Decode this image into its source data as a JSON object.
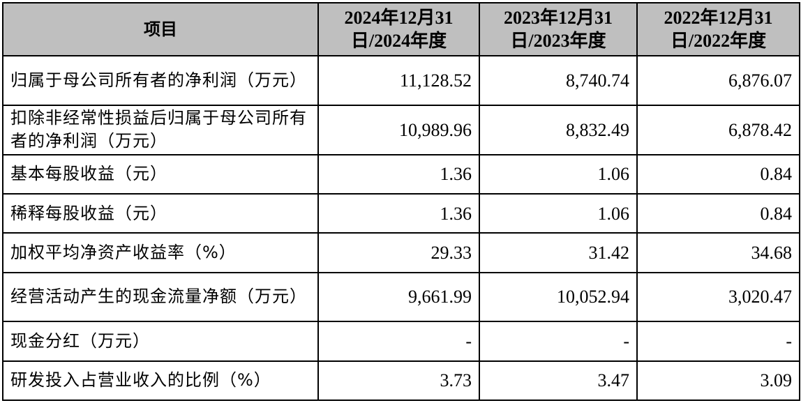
{
  "table": {
    "headers": [
      "项目",
      "2024年12月31日/2024年度",
      "2023年12月31日/2023年度",
      "2022年12月31日/2022年度"
    ],
    "rows": [
      {
        "label": "归属于母公司所有者的净利润（万元）",
        "values": [
          "11,128.52",
          "8,740.74",
          "6,876.07"
        ]
      },
      {
        "label": "扣除非经常性损益后归属于母公司所有者的净利润（万元）",
        "values": [
          "10,989.96",
          "8,832.49",
          "6,878.42"
        ]
      },
      {
        "label": "基本每股收益（元）",
        "values": [
          "1.36",
          "1.06",
          "0.84"
        ]
      },
      {
        "label": "稀释每股收益（元）",
        "values": [
          "1.36",
          "1.06",
          "0.84"
        ]
      },
      {
        "label": "加权平均净资产收益率（%）",
        "values": [
          "29.33",
          "31.42",
          "34.68"
        ]
      },
      {
        "label": "经营活动产生的现金流量净额（万元）",
        "values": [
          "9,661.99",
          "10,052.94",
          "3,020.47"
        ]
      },
      {
        "label": "现金分红（万元）",
        "values": [
          "-",
          "-",
          "-"
        ]
      },
      {
        "label": "研发投入占营业收入的比例（%）",
        "values": [
          "3.73",
          "3.47",
          "3.09"
        ]
      }
    ]
  }
}
